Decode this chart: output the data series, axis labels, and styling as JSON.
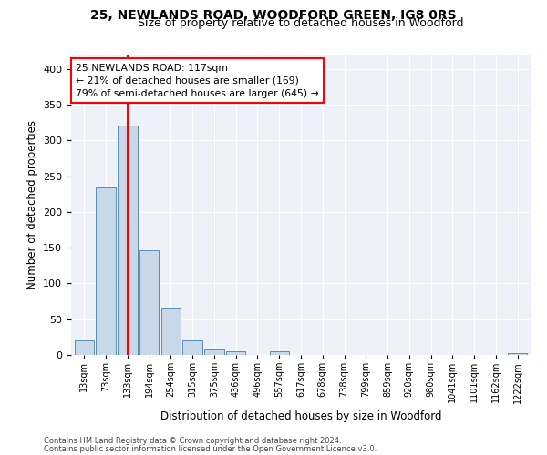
{
  "title": "25, NEWLANDS ROAD, WOODFORD GREEN, IG8 0RS",
  "subtitle": "Size of property relative to detached houses in Woodford",
  "xlabel": "Distribution of detached houses by size in Woodford",
  "ylabel": "Number of detached properties",
  "bar_color": "#c8d8e8",
  "bar_edge_color": "#5b8db8",
  "background_color": "#eef2f8",
  "grid_color": "#ffffff",
  "categories": [
    "13sqm",
    "73sqm",
    "133sqm",
    "194sqm",
    "254sqm",
    "315sqm",
    "375sqm",
    "436sqm",
    "496sqm",
    "557sqm",
    "617sqm",
    "678sqm",
    "738sqm",
    "799sqm",
    "859sqm",
    "920sqm",
    "980sqm",
    "1041sqm",
    "1101sqm",
    "1162sqm",
    "1222sqm"
  ],
  "values": [
    20,
    234,
    321,
    146,
    65,
    20,
    8,
    5,
    0,
    5,
    0,
    0,
    0,
    0,
    0,
    0,
    0,
    0,
    0,
    0,
    3
  ],
  "redline_x": 2.0,
  "annotation_text": "25 NEWLANDS ROAD: 117sqm\n← 21% of detached houses are smaller (169)\n79% of semi-detached houses are larger (645) →",
  "annotation_box_color": "white",
  "annotation_border_color": "red",
  "redline_color": "red",
  "ylim": [
    0,
    420
  ],
  "yticks": [
    0,
    50,
    100,
    150,
    200,
    250,
    300,
    350,
    400
  ],
  "footnote1": "Contains HM Land Registry data © Crown copyright and database right 2024.",
  "footnote2": "Contains public sector information licensed under the Open Government Licence v3.0."
}
